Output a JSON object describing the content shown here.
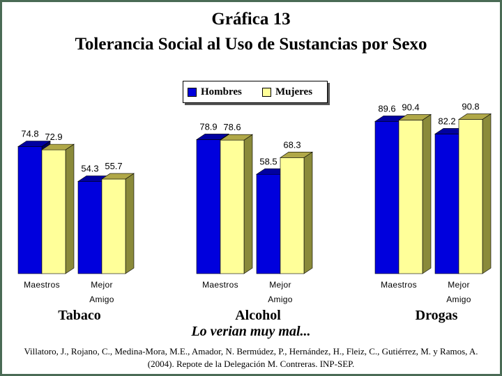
{
  "title": "Gráfica 13",
  "subtitle_main": "Tolerancia Social al Uso de Sustancias por Sexo",
  "note": "Lo verian muy mal...",
  "source": "Villatoro, J., Rojano, C., Medina-Mora, M.E., Amador, N. Bermúdez, P., Hernández, H., Fleiz, C., Gutiérrez, M. y Ramos, A. (2004). Repote de la Delegación M. Contreras. INP-SEP.",
  "colors": {
    "hombres": "#0000dd",
    "mujeres": "#ffff99",
    "frame": "#4a6b55"
  },
  "chart_data": {
    "type": "bar",
    "title": "Tolerancia Social al Uso de Sustancias por Sexo",
    "legend_position": "top-center",
    "grid": false,
    "ylim": [
      0,
      100
    ],
    "groups": [
      {
        "name": "Tabaco",
        "categories": [
          "Maestros",
          "Mejor Amigo"
        ]
      },
      {
        "name": "Alcohol",
        "categories": [
          "Maestros",
          "Mejor Amigo"
        ]
      },
      {
        "name": "Drogas",
        "categories": [
          "Maestros",
          "Mejor Amigo"
        ]
      }
    ],
    "category_labels": [
      [
        "Maestros"
      ],
      [
        "Mejor",
        "Amigo"
      ]
    ],
    "series": [
      {
        "name": "Hombres",
        "values": [
          [
            74.8,
            54.3
          ],
          [
            78.9,
            58.5
          ],
          [
            89.6,
            82.2
          ]
        ]
      },
      {
        "name": "Mujeres",
        "values": [
          [
            72.9,
            55.7
          ],
          [
            78.6,
            68.3
          ],
          [
            90.4,
            90.8
          ]
        ]
      }
    ]
  }
}
